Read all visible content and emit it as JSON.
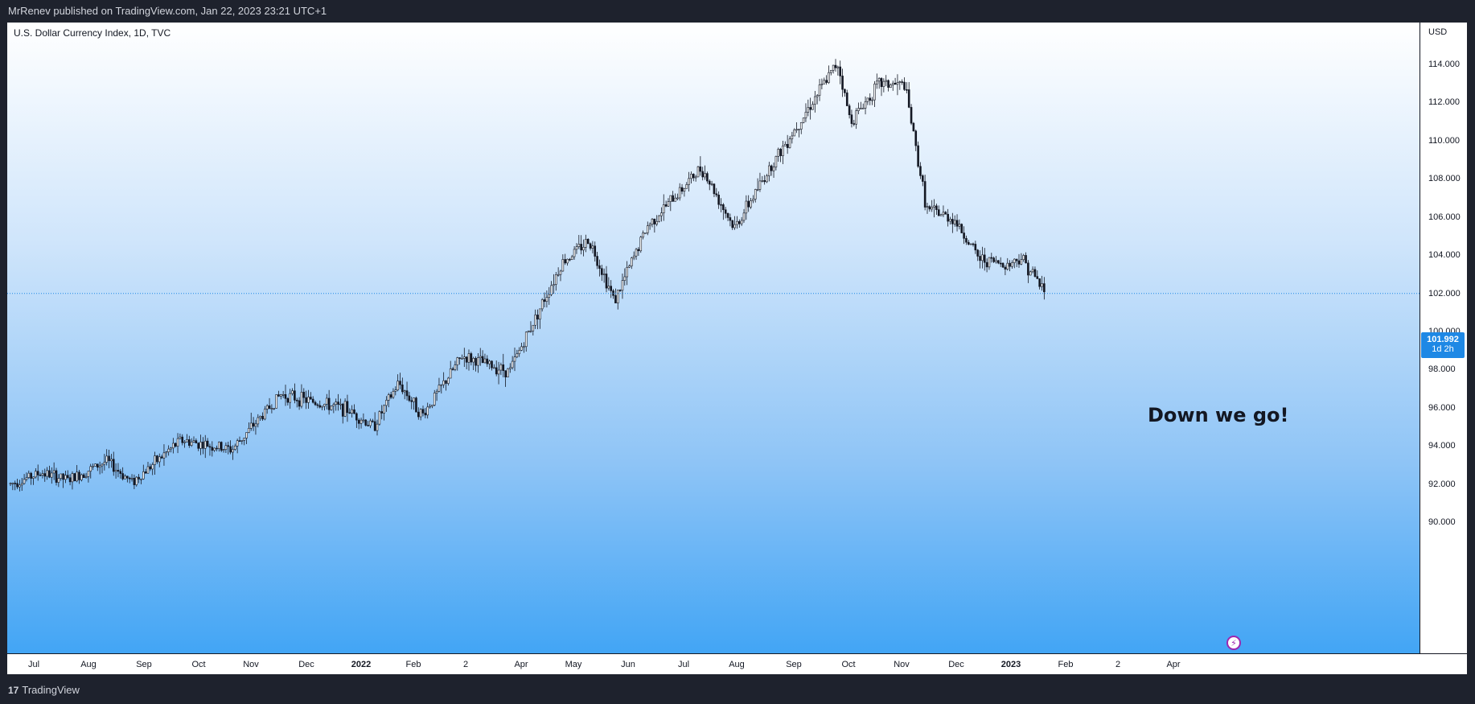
{
  "header": {
    "published": "MrRenev published on TradingView.com, Jan 22, 2023 23:21 UTC+1"
  },
  "footer": {
    "brand": "TradingView"
  },
  "chart_data": {
    "type": "candlestick",
    "legend": "U.S. Dollar Currency Index, 1D, TVC",
    "currency": "USD",
    "annotation": "Down we go!",
    "last_price": "101.992",
    "countdown": "1d 2h",
    "ylim": [
      88.0,
      116.0
    ],
    "yticks": [
      "114.000",
      "112.000",
      "110.000",
      "108.000",
      "106.000",
      "104.000",
      "102.000",
      "100.000",
      "98.000",
      "96.000",
      "94.000",
      "92.000",
      "90.000"
    ],
    "xticks": [
      {
        "label": "Jul",
        "bold": false
      },
      {
        "label": "Aug",
        "bold": false
      },
      {
        "label": "Sep",
        "bold": false
      },
      {
        "label": "Oct",
        "bold": false
      },
      {
        "label": "Nov",
        "bold": false
      },
      {
        "label": "Dec",
        "bold": false
      },
      {
        "label": "2022",
        "bold": true
      },
      {
        "label": "Feb",
        "bold": false
      },
      {
        "label": "2",
        "bold": false
      },
      {
        "label": "Apr",
        "bold": false
      },
      {
        "label": "May",
        "bold": false
      },
      {
        "label": "Jun",
        "bold": false
      },
      {
        "label": "Jul",
        "bold": false
      },
      {
        "label": "Aug",
        "bold": false
      },
      {
        "label": "Sep",
        "bold": false
      },
      {
        "label": "Oct",
        "bold": false
      },
      {
        "label": "Nov",
        "bold": false
      },
      {
        "label": "Dec",
        "bold": false
      },
      {
        "label": "2023",
        "bold": true
      },
      {
        "label": "Feb",
        "bold": false
      },
      {
        "label": "2",
        "bold": false
      },
      {
        "label": "Apr",
        "bold": false
      }
    ],
    "trend": [
      [
        "2021-06-28",
        92.0
      ],
      [
        "2021-07-15",
        92.6
      ],
      [
        "2021-07-30",
        92.2
      ],
      [
        "2021-08-20",
        93.2
      ],
      [
        "2021-09-03",
        92.1
      ],
      [
        "2021-09-30",
        94.3
      ],
      [
        "2021-10-28",
        93.8
      ],
      [
        "2021-11-24",
        96.7
      ],
      [
        "2021-12-31",
        95.9
      ],
      [
        "2022-01-14",
        95.0
      ],
      [
        "2022-01-28",
        97.3
      ],
      [
        "2022-02-10",
        95.6
      ],
      [
        "2022-03-04",
        98.7
      ],
      [
        "2022-03-30",
        97.9
      ],
      [
        "2022-04-28",
        103.6
      ],
      [
        "2022-05-13",
        104.8
      ],
      [
        "2022-05-27",
        101.6
      ],
      [
        "2022-06-14",
        105.5
      ],
      [
        "2022-07-14",
        108.6
      ],
      [
        "2022-08-01",
        105.4
      ],
      [
        "2022-08-22",
        108.8
      ],
      [
        "2022-09-27",
        114.1
      ],
      [
        "2022-10-04",
        111.0
      ],
      [
        "2022-10-20",
        113.0
      ],
      [
        "2022-11-03",
        112.9
      ],
      [
        "2022-11-15",
        106.4
      ],
      [
        "2022-11-30",
        105.9
      ],
      [
        "2022-12-14",
        103.8
      ],
      [
        "2022-12-30",
        103.5
      ],
      [
        "2023-01-06",
        103.9
      ],
      [
        "2023-01-20",
        102.0
      ]
    ]
  }
}
